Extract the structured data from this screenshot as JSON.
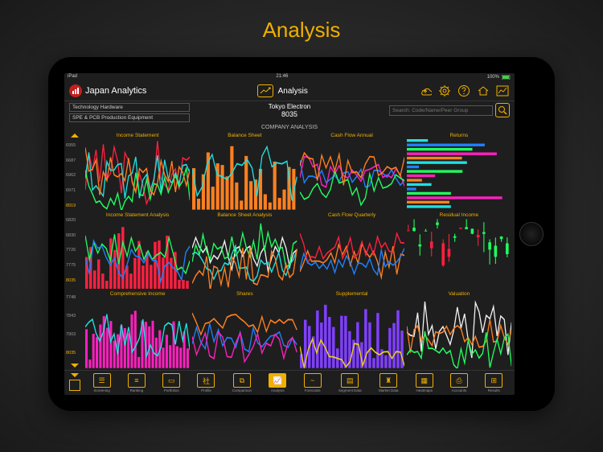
{
  "page_heading": "Analysis",
  "statusbar": {
    "left": "iPad",
    "time": "21:46",
    "battery": "100%"
  },
  "header": {
    "app_name": "Japan Analytics",
    "center_title": "Analysis",
    "icons": [
      "cloud",
      "gear",
      "help",
      "home",
      "chart"
    ]
  },
  "subheader": {
    "category1": "Technology Hardware",
    "category2": "SPE & PCB Production Equipment",
    "company_name": "Tokyo Electron",
    "company_code": "8035",
    "search_placeholder": "Search: Code/Name/Peer Group"
  },
  "section_title": "COMPANY ANALYSIS",
  "side_ticks": {
    "rows": [
      [
        "6955",
        "6687",
        "6962",
        "6971",
        "8919"
      ],
      [
        "6820",
        "6830",
        "7726",
        "7775",
        "8035"
      ],
      [
        "7748",
        "7843",
        "7903",
        "8035"
      ]
    ]
  },
  "charts": {
    "titles": [
      "Income Statement",
      "Balance Sheet",
      "Cash Flow Annual",
      "Returns",
      "Income Statement Analysis",
      "Balance Sheet Analysis",
      "Cash Flow Quarterly",
      "Residual Income",
      "Comprehensive Income",
      "Shares",
      "Supplemental",
      "Valuation"
    ]
  },
  "colors": {
    "accent": "#f0b000",
    "series": {
      "red": "#ff2040",
      "green": "#20ff60",
      "blue": "#2080ff",
      "cyan": "#20e0e0",
      "magenta": "#ff20c0",
      "orange": "#ff8020",
      "yellow": "#f0d020",
      "white": "#f0f0f0",
      "purple": "#8040ff"
    },
    "bg": "#1e1e1e"
  },
  "bottom_nav": {
    "items": [
      "Screening",
      "Ranking",
      "Portfolios",
      "Profile",
      "Comparison",
      "Analysis",
      "Forecasts",
      "Segment Data",
      "Market Data",
      "Heatmaps",
      "Accounts",
      "Results"
    ],
    "active_index": 5
  }
}
